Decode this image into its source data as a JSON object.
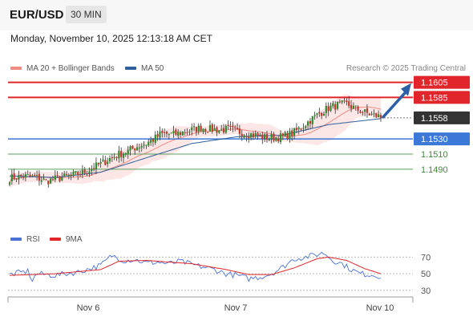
{
  "header": {
    "symbol": "EUR/USD",
    "timeframe": "30 MIN"
  },
  "timestamp": "Monday, November 10, 2025 12:13:18 AM CET",
  "copyright": "Research © 2025 Trading Central",
  "colors": {
    "resistance": "#e0262a",
    "support": "#3b78d8",
    "target": "#5aa05a",
    "last": "#333333",
    "ma20": "#f28b82",
    "ma50": "#2f5f9e",
    "rsi": "#4a72d6",
    "rsi_ma": "#e0262a"
  },
  "chart_data": [
    {
      "type": "candlestick",
      "title": "",
      "legend": [
        {
          "name": "MA 20 + Bollinger Bands",
          "color": "#f28b82"
        },
        {
          "name": "MA 50",
          "color": "#2f5f9e"
        }
      ],
      "legend_position": "top-left",
      "x_ticks": [
        "Nov 6",
        "Nov 7",
        "Nov 10"
      ],
      "ylim": [
        1.1425,
        1.1612
      ],
      "levels": [
        {
          "label": "1.1605",
          "value": 1.1605,
          "kind": "resistance"
        },
        {
          "label": "1.1585",
          "value": 1.1585,
          "kind": "resistance"
        },
        {
          "label": "1.1558",
          "value": 1.1558,
          "kind": "last"
        },
        {
          "label": "1.1530",
          "value": 1.153,
          "kind": "support"
        },
        {
          "label": "1.1510",
          "value": 1.151,
          "kind": "target"
        },
        {
          "label": "1.1490",
          "value": 1.149,
          "kind": "target"
        }
      ],
      "close_path": [
        [
          0,
          1.1478
        ],
        [
          6,
          1.1481
        ],
        [
          12,
          1.1479
        ],
        [
          16,
          1.1474
        ],
        [
          20,
          1.1477
        ],
        [
          26,
          1.1481
        ],
        [
          32,
          1.1485
        ],
        [
          36,
          1.1491
        ],
        [
          40,
          1.1497
        ],
        [
          44,
          1.1504
        ],
        [
          48,
          1.151
        ],
        [
          52,
          1.1514
        ],
        [
          56,
          1.152
        ],
        [
          60,
          1.1524
        ],
        [
          64,
          1.1531
        ],
        [
          66,
          1.1536
        ],
        [
          68,
          1.1537
        ],
        [
          72,
          1.1536
        ],
        [
          76,
          1.1539
        ],
        [
          80,
          1.1542
        ],
        [
          84,
          1.1545
        ],
        [
          88,
          1.1543
        ],
        [
          92,
          1.1542
        ],
        [
          96,
          1.1543
        ],
        [
          100,
          1.154
        ],
        [
          104,
          1.1537
        ],
        [
          108,
          1.1535
        ],
        [
          112,
          1.1532
        ],
        [
          116,
          1.1532
        ],
        [
          120,
          1.1533
        ],
        [
          124,
          1.1537
        ],
        [
          128,
          1.1545
        ],
        [
          132,
          1.1555
        ],
        [
          136,
          1.1564
        ],
        [
          140,
          1.1571
        ],
        [
          144,
          1.1575
        ],
        [
          148,
          1.1576
        ],
        [
          152,
          1.157
        ],
        [
          156,
          1.1565
        ],
        [
          160,
          1.1561
        ],
        [
          162,
          1.156
        ],
        [
          163,
          1.1558
        ]
      ],
      "ma50_path": [
        [
          0,
          1.1481
        ],
        [
          20,
          1.1479
        ],
        [
          40,
          1.1486
        ],
        [
          60,
          1.1505
        ],
        [
          80,
          1.1524
        ],
        [
          100,
          1.1533
        ],
        [
          120,
          1.1535
        ],
        [
          140,
          1.1549
        ],
        [
          163,
          1.1557
        ]
      ],
      "forecast_target": 1.1605
    },
    {
      "type": "line",
      "title": "",
      "legend": [
        {
          "name": "RSI",
          "color": "#4a72d6"
        },
        {
          "name": "9MA",
          "color": "#e0262a"
        }
      ],
      "y_ticks": [
        70,
        50,
        30
      ],
      "ylim": [
        24,
        80
      ],
      "rsi_path": [
        [
          0,
          49
        ],
        [
          8,
          53
        ],
        [
          10,
          42
        ],
        [
          12,
          50
        ],
        [
          20,
          48
        ],
        [
          30,
          52
        ],
        [
          40,
          60
        ],
        [
          45,
          72
        ],
        [
          50,
          66
        ],
        [
          55,
          67
        ],
        [
          60,
          63
        ],
        [
          65,
          64
        ],
        [
          70,
          62
        ],
        [
          75,
          65
        ],
        [
          80,
          61
        ],
        [
          85,
          58
        ],
        [
          90,
          55
        ],
        [
          95,
          50
        ],
        [
          100,
          48
        ],
        [
          105,
          44
        ],
        [
          110,
          46
        ],
        [
          115,
          50
        ],
        [
          120,
          58
        ],
        [
          125,
          68
        ],
        [
          130,
          70
        ],
        [
          135,
          73
        ],
        [
          138,
          75
        ],
        [
          142,
          66
        ],
        [
          146,
          62
        ],
        [
          150,
          55
        ],
        [
          154,
          50
        ],
        [
          158,
          49
        ],
        [
          163,
          47
        ]
      ],
      "ma_path": [
        [
          0,
          48
        ],
        [
          20,
          50
        ],
        [
          40,
          55
        ],
        [
          48,
          65
        ],
        [
          60,
          66
        ],
        [
          80,
          62
        ],
        [
          95,
          55
        ],
        [
          105,
          49
        ],
        [
          115,
          49
        ],
        [
          125,
          57
        ],
        [
          135,
          68
        ],
        [
          140,
          70
        ],
        [
          148,
          66
        ],
        [
          156,
          56
        ],
        [
          163,
          50
        ]
      ]
    }
  ]
}
